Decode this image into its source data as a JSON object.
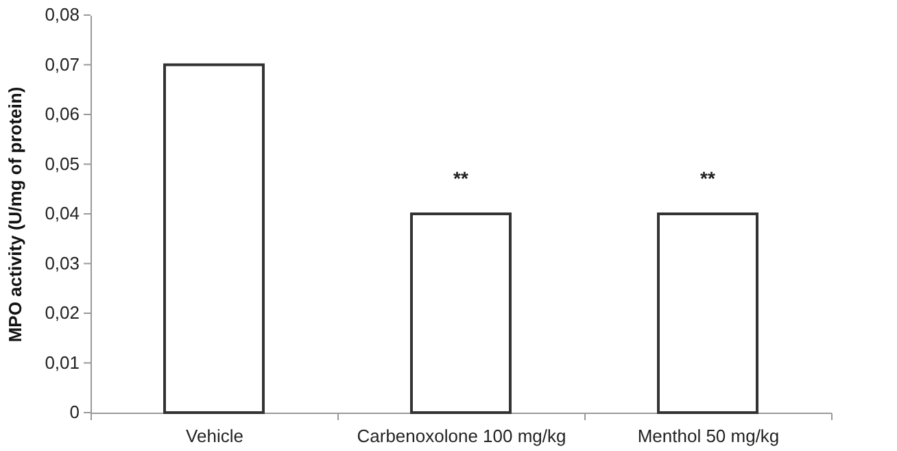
{
  "chart_data": {
    "type": "bar",
    "ylabel": "MPO activity (U/mg of protein)",
    "categories": [
      "Vehicle",
      "Carbenoxolone 100 mg/kg",
      "Menthol 50 mg/kg"
    ],
    "values": [
      0.07,
      0.04,
      0.04
    ],
    "color": "#ffffff",
    "ylim": [
      0,
      0.08
    ],
    "yticks": [
      0,
      {
        "value": 0.01,
        "label": "0,01"
      },
      {
        "value": 0.02,
        "label": "0,02"
      },
      {
        "value": 0.03,
        "label": "0,03"
      },
      {
        "value": 0.04,
        "label": "0,04"
      },
      {
        "value": 0.05,
        "label": "0,05"
      },
      {
        "value": 0.06,
        "label": "0,06"
      },
      {
        "value": 0.07,
        "label": "0,07"
      },
      {
        "value": 0.08,
        "label": "0,08"
      }
    ],
    "annotations": [
      {
        "text": "**",
        "x": "Carbenoxolone 100 mg/kg",
        "y": 0.04
      },
      {
        "text": "**",
        "x": "Menthol 50 mg/kg",
        "y": 0.04
      }
    ],
    "grid": false
  }
}
